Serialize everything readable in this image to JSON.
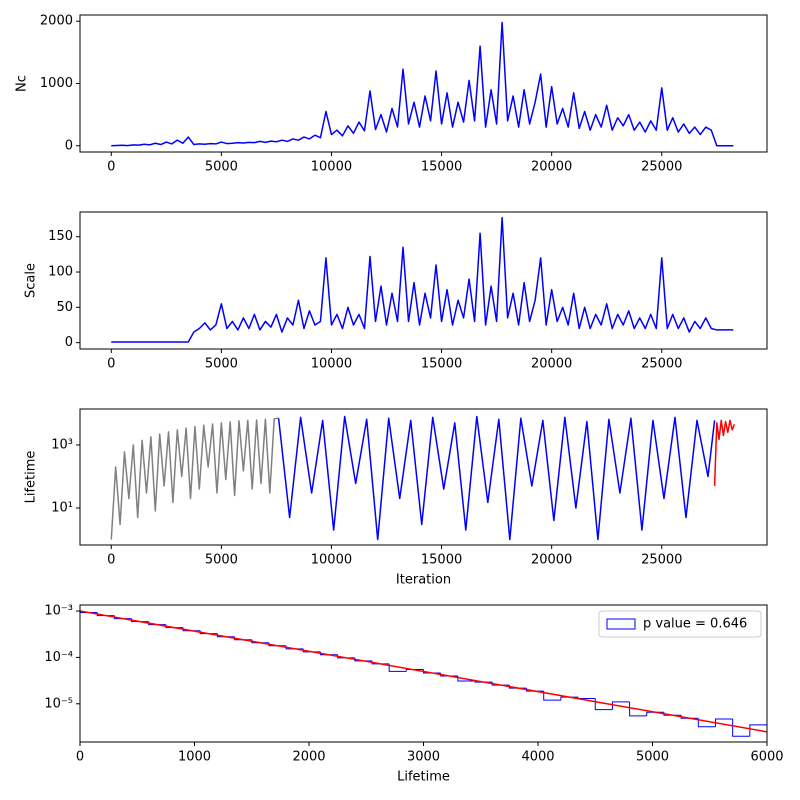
{
  "chart_data": [
    {
      "type": "line",
      "ylabel": "Nc",
      "xlim": [
        -1420,
        29780
      ],
      "ylim": [
        -100,
        2100
      ],
      "xticks": [
        0,
        5000,
        10000,
        15000,
        20000,
        25000
      ],
      "yticks": [
        0,
        1000,
        2000
      ],
      "x": [
        0,
        250,
        500,
        750,
        1000,
        1250,
        1500,
        1750,
        2000,
        2250,
        2500,
        2750,
        3000,
        3250,
        3500,
        3750,
        4000,
        4250,
        4500,
        4750,
        5000,
        5250,
        5500,
        5750,
        6000,
        6250,
        6500,
        6750,
        7000,
        7250,
        7500,
        7750,
        8000,
        8250,
        8500,
        8750,
        9000,
        9250,
        9500,
        9750,
        10000,
        10250,
        10500,
        10750,
        11000,
        11250,
        11500,
        11750,
        12000,
        12250,
        12500,
        12750,
        13000,
        13250,
        13500,
        13750,
        14000,
        14250,
        14500,
        14750,
        15000,
        15250,
        15500,
        15750,
        16000,
        16250,
        16500,
        16750,
        17000,
        17250,
        17500,
        17750,
        18000,
        18250,
        18500,
        18750,
        19000,
        19250,
        19500,
        19750,
        20000,
        20250,
        20500,
        20750,
        21000,
        21250,
        21500,
        21750,
        22000,
        22250,
        22500,
        22750,
        23000,
        23250,
        23500,
        23750,
        24000,
        24250,
        24500,
        24750,
        25000,
        25250,
        25500,
        25750,
        26000,
        26250,
        26500,
        26750,
        27000,
        27250,
        27500,
        27750,
        28000,
        28250
      ],
      "series": [
        {
          "color": "#0000ff",
          "values": [
            0,
            5,
            8,
            3,
            15,
            10,
            25,
            15,
            40,
            20,
            60,
            30,
            90,
            40,
            140,
            20,
            30,
            25,
            35,
            30,
            60,
            35,
            40,
            50,
            45,
            55,
            50,
            70,
            55,
            75,
            65,
            90,
            70,
            110,
            90,
            140,
            110,
            170,
            130,
            550,
            180,
            250,
            160,
            320,
            200,
            380,
            240,
            880,
            260,
            500,
            220,
            600,
            300,
            1230,
            350,
            700,
            300,
            800,
            400,
            1200,
            350,
            850,
            300,
            700,
            380,
            1050,
            400,
            1600,
            300,
            900,
            350,
            1980,
            400,
            800,
            300,
            900,
            350,
            700,
            1150,
            300,
            950,
            350,
            600,
            300,
            850,
            280,
            550,
            250,
            500,
            300,
            650,
            250,
            450,
            320,
            500,
            250,
            380,
            220,
            400,
            250,
            930,
            250,
            450,
            220,
            350,
            200,
            300,
            180,
            300,
            250,
            0,
            0,
            0,
            0
          ]
        }
      ]
    },
    {
      "type": "line",
      "ylabel": "Scale",
      "xlim": [
        -1420,
        29780
      ],
      "ylim": [
        -9,
        185
      ],
      "xticks": [
        0,
        5000,
        10000,
        15000,
        20000,
        25000
      ],
      "yticks": [
        0,
        50,
        100,
        150
      ],
      "x": [
        0,
        250,
        500,
        750,
        1000,
        1250,
        1500,
        1750,
        2000,
        2250,
        2500,
        2750,
        3000,
        3250,
        3500,
        3750,
        4000,
        4250,
        4500,
        4750,
        5000,
        5250,
        5500,
        5750,
        6000,
        6250,
        6500,
        6750,
        7000,
        7250,
        7500,
        7750,
        8000,
        8250,
        8500,
        8750,
        9000,
        9250,
        9500,
        9750,
        10000,
        10250,
        10500,
        10750,
        11000,
        11250,
        11500,
        11750,
        12000,
        12250,
        12500,
        12750,
        13000,
        13250,
        13500,
        13750,
        14000,
        14250,
        14500,
        14750,
        15000,
        15250,
        15500,
        15750,
        16000,
        16250,
        16500,
        16750,
        17000,
        17250,
        17500,
        17750,
        18000,
        18250,
        18500,
        18750,
        19000,
        19250,
        19500,
        19750,
        20000,
        20250,
        20500,
        20750,
        21000,
        21250,
        21500,
        21750,
        22000,
        22250,
        22500,
        22750,
        23000,
        23250,
        23500,
        23750,
        24000,
        24250,
        24500,
        24750,
        25000,
        25250,
        25500,
        25750,
        26000,
        26250,
        26500,
        26750,
        27000,
        27250,
        27500,
        27750,
        28000,
        28250
      ],
      "series": [
        {
          "color": "#0000ff",
          "values": [
            1,
            1,
            1,
            1,
            1,
            1,
            1,
            1,
            1,
            1,
            1,
            1,
            1,
            1,
            1,
            15,
            20,
            28,
            18,
            25,
            55,
            20,
            30,
            18,
            35,
            20,
            40,
            18,
            30,
            22,
            40,
            15,
            35,
            25,
            60,
            20,
            45,
            25,
            30,
            120,
            25,
            40,
            20,
            50,
            25,
            40,
            20,
            122,
            30,
            80,
            25,
            70,
            30,
            135,
            30,
            85,
            25,
            70,
            35,
            110,
            30,
            75,
            25,
            60,
            35,
            90,
            30,
            155,
            25,
            80,
            30,
            177,
            35,
            70,
            25,
            85,
            30,
            60,
            120,
            25,
            75,
            30,
            50,
            25,
            70,
            20,
            50,
            20,
            40,
            25,
            55,
            20,
            40,
            25,
            45,
            20,
            35,
            20,
            40,
            20,
            120,
            20,
            40,
            20,
            35,
            15,
            30,
            20,
            35,
            20,
            18,
            18,
            18,
            18
          ]
        }
      ]
    },
    {
      "type": "line",
      "ylabel": "Lifetime",
      "xlabel": "Iteration",
      "ylog": true,
      "xlim": [
        -1420,
        29780
      ],
      "ylim": [
        0.67,
        13800
      ],
      "xticks": [
        0,
        5000,
        10000,
        15000,
        20000,
        25000
      ],
      "yticks": [
        {
          "value": 10,
          "label": "10¹"
        },
        {
          "value": 1000,
          "label": "10³"
        }
      ],
      "series": [
        {
          "color": "#808080",
          "x": [
            0,
            200,
            400,
            600,
            800,
            1000,
            1200,
            1400,
            1600,
            1800,
            2000,
            2200,
            2400,
            2600,
            2800,
            3000,
            3200,
            3400,
            3600,
            3800,
            4000,
            4200,
            4400,
            4600,
            4800,
            5000,
            5200,
            5400,
            5600,
            5800,
            6000,
            6200,
            6400,
            6600,
            6800,
            7000,
            7200,
            7400,
            7600
          ],
          "values": [
            1,
            200,
            3,
            600,
            20,
            1000,
            5,
            1400,
            30,
            1800,
            8,
            2200,
            50,
            2600,
            15,
            3000,
            100,
            3400,
            20,
            3800,
            40,
            4200,
            200,
            4600,
            30,
            5000,
            80,
            5400,
            25,
            5800,
            150,
            6000,
            40,
            6200,
            60,
            6500,
            30,
            6800,
            7000
          ]
        },
        {
          "color": "#0000ff",
          "x": [
            7600,
            8100,
            8600,
            9100,
            9600,
            10100,
            10600,
            11100,
            11600,
            12100,
            12600,
            13100,
            13600,
            14100,
            14600,
            15100,
            15600,
            16100,
            16600,
            17100,
            17600,
            18100,
            18600,
            19100,
            19600,
            20100,
            20600,
            21100,
            21600,
            22100,
            22600,
            23100,
            23600,
            24100,
            24600,
            25100,
            25600,
            26100,
            26600,
            27100,
            27400
          ],
          "values": [
            7000,
            5,
            7500,
            30,
            6000,
            2,
            8000,
            60,
            6500,
            1,
            7000,
            20,
            6000,
            3,
            7500,
            40,
            5000,
            2,
            8000,
            15,
            6500,
            1,
            7000,
            50,
            6000,
            4,
            7500,
            10,
            5500,
            1,
            6500,
            30,
            7000,
            2,
            6000,
            20,
            7500,
            5,
            6000,
            100,
            6000
          ]
        },
        {
          "color": "#ff0000",
          "x": [
            27400,
            27500,
            27600,
            27700,
            27800,
            27900,
            28000,
            28100,
            28200,
            28300
          ],
          "values": [
            50,
            5000,
            1500,
            6000,
            2000,
            5500,
            2500,
            6000,
            3000,
            4500
          ]
        }
      ]
    },
    {
      "type": "histogram",
      "xlabel": "Lifetime",
      "ylog": true,
      "xlim": [
        0,
        6000
      ],
      "ylim": [
        1.5e-06,
        0.00135
      ],
      "xticks": [
        0,
        1000,
        2000,
        3000,
        4000,
        5000,
        6000
      ],
      "yticks": [
        {
          "value": 1e-05,
          "label": "10⁻⁵"
        },
        {
          "value": 0.0001,
          "label": "10⁻⁴"
        },
        {
          "value": 0.001,
          "label": "10⁻³"
        }
      ],
      "name": "p value = 0.646",
      "color": "#0000ff",
      "legend": "upper right",
      "bins": [
        0,
        150,
        300,
        450,
        600,
        750,
        900,
        1050,
        1200,
        1350,
        1500,
        1650,
        1800,
        1950,
        2100,
        2250,
        2400,
        2550,
        2700,
        2850,
        3000,
        3150,
        3300,
        3450,
        3600,
        3750,
        3900,
        4050,
        4200,
        4350,
        4500,
        4650,
        4800,
        4950,
        5100,
        5250,
        5400,
        5550,
        5700,
        5850,
        6000
      ],
      "values": [
        0.000928,
        0.000798,
        0.000687,
        0.000592,
        0.000509,
        0.000438,
        0.000377,
        0.000325,
        0.000279,
        0.000241,
        0.000207,
        0.000178,
        0.000153,
        0.000132,
        0.000114,
        9.78e-05,
        8.42e-05,
        7.24e-05,
        5e-05,
        5.5e-05,
        4.62e-05,
        3.97e-05,
        3.1e-05,
        2.94e-05,
        2.53e-05,
        2.18e-05,
        1.88e-05,
        1.2e-05,
        1.39e-05,
        1.3e-05,
        7.5e-06,
        1.1e-05,
        5.5e-06,
        6.57e-06,
        5.65e-06,
        4.87e-06,
        3.2e-06,
        4.7e-06,
        2e-06,
        3.5e-06
      ],
      "fit": {
        "color": "#ff0000",
        "x": [
          0,
          6000
        ],
        "values": [
          0.001,
          2.48e-06
        ]
      }
    }
  ]
}
